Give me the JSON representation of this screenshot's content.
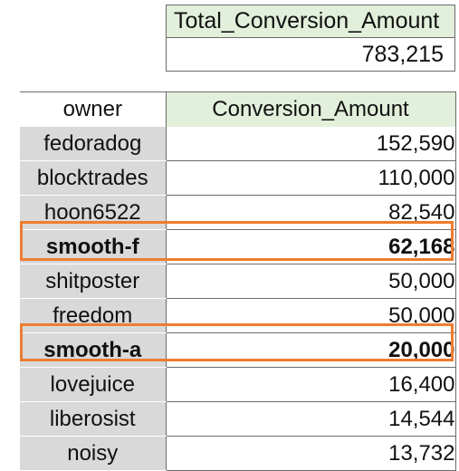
{
  "summary": {
    "header": "Total_Conversion_Amount",
    "value": "783,215"
  },
  "table": {
    "columns": [
      "owner",
      "Conversion_Amount"
    ],
    "rows": [
      {
        "owner": "fedoradog",
        "amount": "152,590",
        "highlighted": false
      },
      {
        "owner": "blocktrades",
        "amount": "110,000",
        "highlighted": false
      },
      {
        "owner": "hoon6522",
        "amount": "82,540",
        "highlighted": false
      },
      {
        "owner": "smooth-f",
        "amount": "62,168",
        "highlighted": true
      },
      {
        "owner": "shitposter",
        "amount": "50,000",
        "highlighted": false
      },
      {
        "owner": "freedom",
        "amount": "50,000",
        "highlighted": false
      },
      {
        "owner": "smooth-a",
        "amount": "20,000",
        "highlighted": true
      },
      {
        "owner": "lovejuice",
        "amount": "16,400",
        "highlighted": false
      },
      {
        "owner": "liberosist",
        "amount": "14,544",
        "highlighted": false
      },
      {
        "owner": "noisy",
        "amount": "13,732",
        "highlighted": false
      }
    ]
  },
  "colors": {
    "header_green": "#e2efda",
    "owner_gray": "#d9d9d9",
    "highlight_orange": "#ed7d31"
  }
}
